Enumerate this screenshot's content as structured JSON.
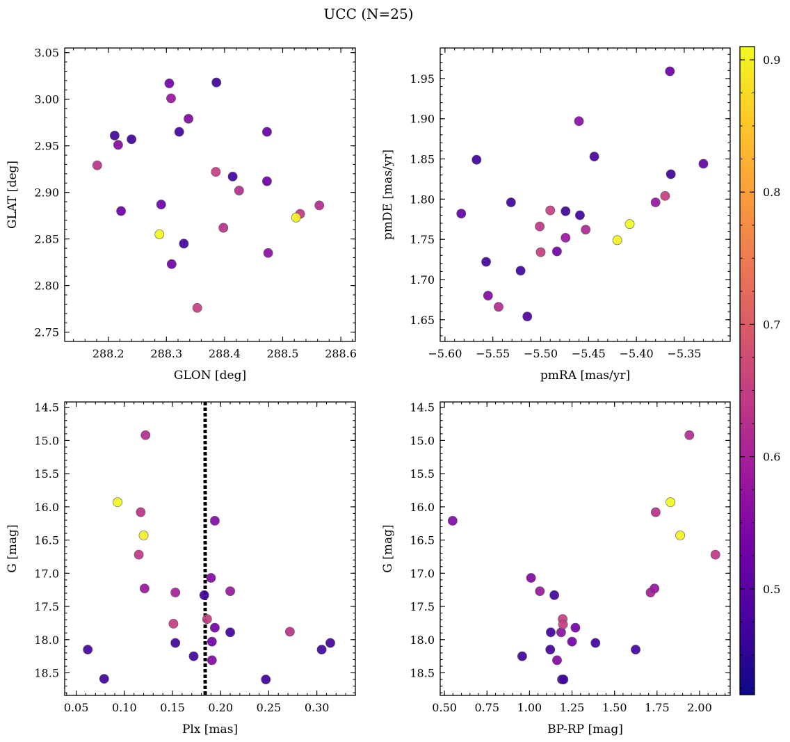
{
  "title": "UCC (N=25)",
  "colorbar": {
    "range": [
      0.42,
      0.91
    ],
    "ticks": [
      0.5,
      0.6,
      0.7,
      0.8,
      0.9
    ],
    "tick_labels": [
      "0.5",
      "0.6",
      "0.7",
      "0.8",
      "0.9"
    ],
    "colormap": "plasma",
    "stops": [
      "#0d0887",
      "#46039f",
      "#7201a8",
      "#9c179e",
      "#bd3786",
      "#d8576b",
      "#ed7953",
      "#fb9f3a",
      "#fdca26",
      "#f0f921"
    ]
  },
  "chart_data": [
    {
      "type": "scatter",
      "xlabel": "GLON [deg]",
      "ylabel": "GLAT [deg]",
      "xlim": [
        288.125,
        288.625
      ],
      "ylim": [
        2.74,
        3.055
      ],
      "y_inverted": false,
      "xticks": [
        288.2,
        288.3,
        288.4,
        288.5,
        288.6
      ],
      "xtick_labels": [
        "288.2",
        "288.3",
        "288.4",
        "288.5",
        "288.6"
      ],
      "yticks": [
        2.75,
        2.8,
        2.85,
        2.9,
        2.95,
        3.0,
        3.05
      ],
      "ytick_labels": [
        "2.75",
        "2.80",
        "2.85",
        "2.90",
        "2.95",
        "3.00",
        "3.05"
      ],
      "points": [
        {
          "x": 288.181,
          "y": 2.929,
          "c": 0.63
        },
        {
          "x": 288.211,
          "y": 2.961,
          "c": 0.47
        },
        {
          "x": 288.217,
          "y": 2.951,
          "c": 0.55
        },
        {
          "x": 288.24,
          "y": 2.957,
          "c": 0.47
        },
        {
          "x": 288.222,
          "y": 2.88,
          "c": 0.52
        },
        {
          "x": 288.291,
          "y": 2.887,
          "c": 0.52
        },
        {
          "x": 288.288,
          "y": 2.855,
          "c": 0.91
        },
        {
          "x": 288.305,
          "y": 3.017,
          "c": 0.53
        },
        {
          "x": 288.308,
          "y": 3.001,
          "c": 0.58
        },
        {
          "x": 288.322,
          "y": 2.965,
          "c": 0.47
        },
        {
          "x": 288.338,
          "y": 2.979,
          "c": 0.55
        },
        {
          "x": 288.33,
          "y": 2.845,
          "c": 0.47
        },
        {
          "x": 288.309,
          "y": 2.823,
          "c": 0.53
        },
        {
          "x": 288.353,
          "y": 2.776,
          "c": 0.65
        },
        {
          "x": 288.386,
          "y": 3.018,
          "c": 0.47
        },
        {
          "x": 288.385,
          "y": 2.922,
          "c": 0.65
        },
        {
          "x": 288.414,
          "y": 2.917,
          "c": 0.47
        },
        {
          "x": 288.425,
          "y": 2.902,
          "c": 0.62
        },
        {
          "x": 288.398,
          "y": 2.862,
          "c": 0.63
        },
        {
          "x": 288.473,
          "y": 2.965,
          "c": 0.51
        },
        {
          "x": 288.473,
          "y": 2.912,
          "c": 0.52
        },
        {
          "x": 288.475,
          "y": 2.835,
          "c": 0.56
        },
        {
          "x": 288.53,
          "y": 2.877,
          "c": 0.64
        },
        {
          "x": 288.523,
          "y": 2.873,
          "c": 0.9
        },
        {
          "x": 288.563,
          "y": 2.886,
          "c": 0.62
        }
      ]
    },
    {
      "type": "scatter",
      "xlabel": "pmRA [mas/yr]",
      "ylabel": "pmDE [mas/yr]",
      "xlim": [
        -5.605,
        -5.302
      ],
      "ylim": [
        1.623,
        1.988
      ],
      "y_inverted": false,
      "xticks": [
        -5.6,
        -5.55,
        -5.5,
        -5.45,
        -5.4,
        -5.35
      ],
      "xtick_labels": [
        "−5.60",
        "−5.55",
        "−5.50",
        "−5.45",
        "−5.40",
        "−5.35"
      ],
      "yticks": [
        1.65,
        1.7,
        1.75,
        1.8,
        1.85,
        1.9,
        1.95
      ],
      "ytick_labels": [
        "1.65",
        "1.70",
        "1.75",
        "1.80",
        "1.85",
        "1.90",
        "1.95"
      ],
      "points": [
        {
          "x": -5.583,
          "y": 1.782,
          "c": 0.51
        },
        {
          "x": -5.567,
          "y": 1.849,
          "c": 0.47
        },
        {
          "x": -5.557,
          "y": 1.722,
          "c": 0.47
        },
        {
          "x": -5.555,
          "y": 1.68,
          "c": 0.55
        },
        {
          "x": -5.544,
          "y": 1.666,
          "c": 0.62
        },
        {
          "x": -5.531,
          "y": 1.796,
          "c": 0.47
        },
        {
          "x": -5.521,
          "y": 1.711,
          "c": 0.47
        },
        {
          "x": -5.514,
          "y": 1.654,
          "c": 0.49
        },
        {
          "x": -5.501,
          "y": 1.766,
          "c": 0.64
        },
        {
          "x": -5.5,
          "y": 1.734,
          "c": 0.65
        },
        {
          "x": -5.49,
          "y": 1.786,
          "c": 0.65
        },
        {
          "x": -5.483,
          "y": 1.735,
          "c": 0.53
        },
        {
          "x": -5.474,
          "y": 1.785,
          "c": 0.47
        },
        {
          "x": -5.474,
          "y": 1.752,
          "c": 0.58
        },
        {
          "x": -5.46,
          "y": 1.897,
          "c": 0.56
        },
        {
          "x": -5.459,
          "y": 1.78,
          "c": 0.47
        },
        {
          "x": -5.453,
          "y": 1.762,
          "c": 0.61
        },
        {
          "x": -5.444,
          "y": 1.853,
          "c": 0.48
        },
        {
          "x": -5.42,
          "y": 1.749,
          "c": 0.9
        },
        {
          "x": -5.407,
          "y": 1.769,
          "c": 0.91
        },
        {
          "x": -5.38,
          "y": 1.796,
          "c": 0.58
        },
        {
          "x": -5.37,
          "y": 1.804,
          "c": 0.65
        },
        {
          "x": -5.365,
          "y": 1.959,
          "c": 0.52
        },
        {
          "x": -5.364,
          "y": 1.831,
          "c": 0.47
        },
        {
          "x": -5.33,
          "y": 1.844,
          "c": 0.51
        }
      ]
    },
    {
      "type": "scatter",
      "xlabel": "Plx [mas]",
      "ylabel": "G [mag]",
      "xlim": [
        0.038,
        0.34
      ],
      "ylim": [
        18.84,
        14.42
      ],
      "y_inverted": true,
      "xticks": [
        0.05,
        0.1,
        0.15,
        0.2,
        0.25,
        0.3
      ],
      "xtick_labels": [
        "0.05",
        "0.10",
        "0.15",
        "0.20",
        "0.25",
        "0.30"
      ],
      "yticks": [
        14.5,
        15.0,
        15.5,
        16.0,
        16.5,
        17.0,
        17.5,
        18.0,
        18.5
      ],
      "ytick_labels": [
        "14.5",
        "15.0",
        "15.5",
        "16.0",
        "16.5",
        "17.0",
        "17.5",
        "18.0",
        "18.5"
      ],
      "vline": 0.184,
      "points": [
        {
          "x": 0.122,
          "y": 14.92,
          "c": 0.62
        },
        {
          "x": 0.093,
          "y": 15.93,
          "c": 0.91
        },
        {
          "x": 0.117,
          "y": 16.08,
          "c": 0.63
        },
        {
          "x": 0.12,
          "y": 16.43,
          "c": 0.9
        },
        {
          "x": 0.115,
          "y": 16.72,
          "c": 0.64
        },
        {
          "x": 0.121,
          "y": 17.23,
          "c": 0.58
        },
        {
          "x": 0.153,
          "y": 17.29,
          "c": 0.6
        },
        {
          "x": 0.151,
          "y": 17.76,
          "c": 0.65
        },
        {
          "x": 0.153,
          "y": 18.05,
          "c": 0.47
        },
        {
          "x": 0.172,
          "y": 18.25,
          "c": 0.47
        },
        {
          "x": 0.183,
          "y": 17.33,
          "c": 0.47
        },
        {
          "x": 0.186,
          "y": 17.69,
          "c": 0.65
        },
        {
          "x": 0.19,
          "y": 17.07,
          "c": 0.55
        },
        {
          "x": 0.194,
          "y": 16.21,
          "c": 0.55
        },
        {
          "x": 0.194,
          "y": 17.82,
          "c": 0.53
        },
        {
          "x": 0.191,
          "y": 18.03,
          "c": 0.53
        },
        {
          "x": 0.191,
          "y": 18.31,
          "c": 0.55
        },
        {
          "x": 0.21,
          "y": 17.27,
          "c": 0.58
        },
        {
          "x": 0.21,
          "y": 17.89,
          "c": 0.47
        },
        {
          "x": 0.247,
          "y": 18.6,
          "c": 0.47
        },
        {
          "x": 0.272,
          "y": 17.88,
          "c": 0.63
        },
        {
          "x": 0.305,
          "y": 18.15,
          "c": 0.47
        },
        {
          "x": 0.314,
          "y": 18.05,
          "c": 0.47
        },
        {
          "x": 0.062,
          "y": 18.15,
          "c": 0.47
        },
        {
          "x": 0.079,
          "y": 18.59,
          "c": 0.47
        }
      ]
    },
    {
      "type": "scatter",
      "xlabel": "BP-RP [mag]",
      "ylabel": "G [mag]",
      "xlim": [
        0.475,
        2.18
      ],
      "ylim": [
        18.84,
        14.42
      ],
      "y_inverted": true,
      "xticks": [
        0.5,
        0.75,
        1.0,
        1.25,
        1.5,
        1.75,
        2.0
      ],
      "xtick_labels": [
        "0.50",
        "0.75",
        "1.00",
        "1.25",
        "1.50",
        "1.75",
        "2.00"
      ],
      "yticks": [
        14.5,
        15.0,
        15.5,
        16.0,
        16.5,
        17.0,
        17.5,
        18.0,
        18.5
      ],
      "ytick_labels": [
        "14.5",
        "15.0",
        "15.5",
        "16.0",
        "16.5",
        "17.0",
        "17.5",
        "18.0",
        "18.5"
      ],
      "points": [
        {
          "x": 0.548,
          "y": 16.21,
          "c": 0.55
        },
        {
          "x": 0.957,
          "y": 18.25,
          "c": 0.47
        },
        {
          "x": 1.009,
          "y": 17.07,
          "c": 0.55
        },
        {
          "x": 1.061,
          "y": 17.27,
          "c": 0.58
        },
        {
          "x": 1.125,
          "y": 17.89,
          "c": 0.47
        },
        {
          "x": 1.122,
          "y": 18.15,
          "c": 0.47
        },
        {
          "x": 1.146,
          "y": 17.33,
          "c": 0.47
        },
        {
          "x": 1.162,
          "y": 18.31,
          "c": 0.55
        },
        {
          "x": 1.186,
          "y": 17.89,
          "c": 0.56
        },
        {
          "x": 1.195,
          "y": 17.69,
          "c": 0.65
        },
        {
          "x": 1.197,
          "y": 17.77,
          "c": 0.65
        },
        {
          "x": 1.191,
          "y": 18.6,
          "c": 0.47
        },
        {
          "x": 1.2,
          "y": 18.6,
          "c": 0.47
        },
        {
          "x": 1.27,
          "y": 17.82,
          "c": 0.53
        },
        {
          "x": 1.25,
          "y": 18.03,
          "c": 0.53
        },
        {
          "x": 1.388,
          "y": 18.05,
          "c": 0.47
        },
        {
          "x": 1.624,
          "y": 18.15,
          "c": 0.47
        },
        {
          "x": 1.712,
          "y": 17.29,
          "c": 0.6
        },
        {
          "x": 1.735,
          "y": 17.23,
          "c": 0.58
        },
        {
          "x": 1.742,
          "y": 16.08,
          "c": 0.63
        },
        {
          "x": 1.829,
          "y": 15.93,
          "c": 0.91
        },
        {
          "x": 1.886,
          "y": 16.43,
          "c": 0.9
        },
        {
          "x": 1.94,
          "y": 14.92,
          "c": 0.62
        },
        {
          "x": 2.093,
          "y": 16.72,
          "c": 0.64
        }
      ]
    }
  ]
}
